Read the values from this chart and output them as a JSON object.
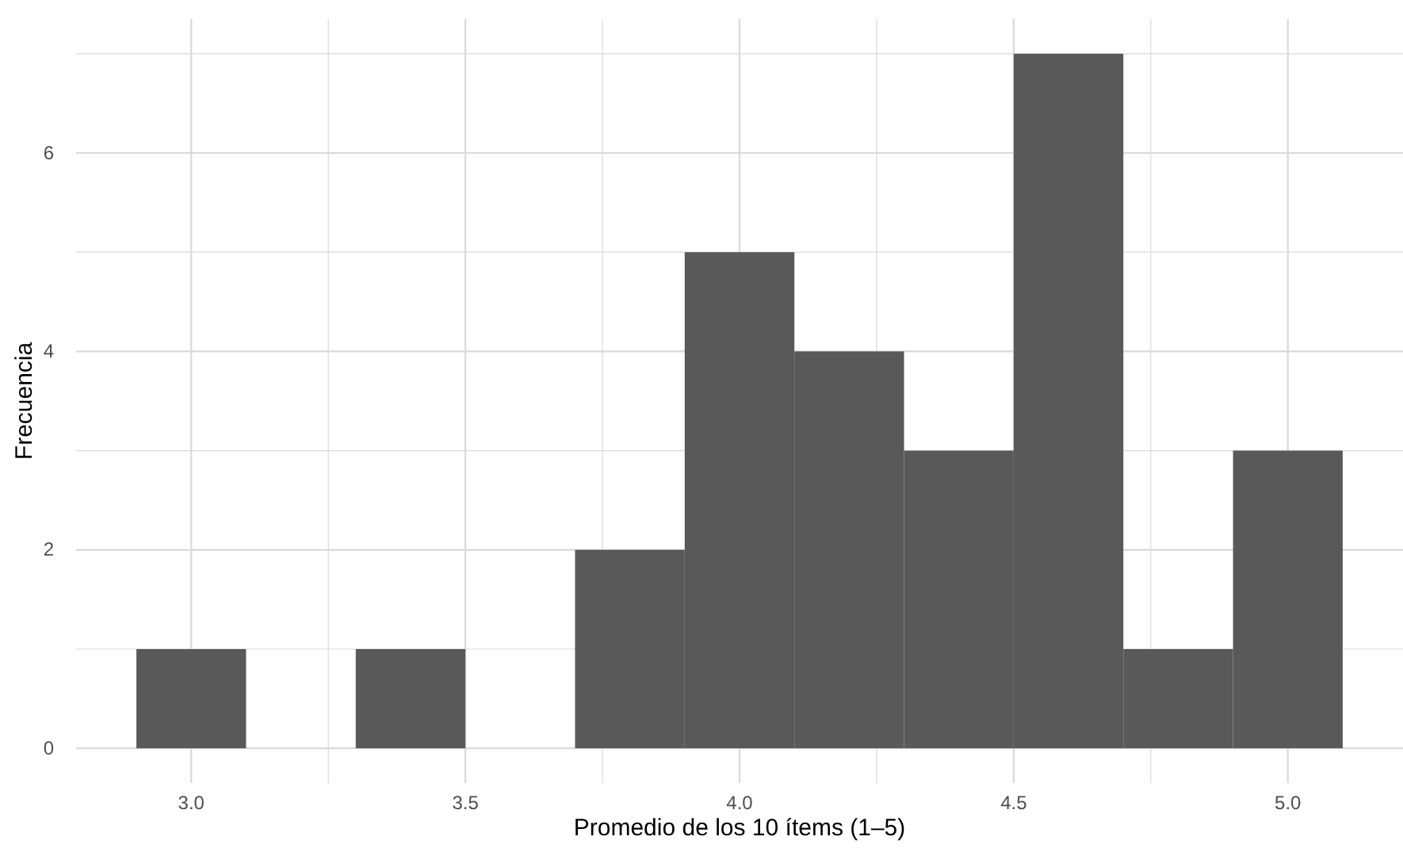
{
  "chart_data": {
    "type": "histogram",
    "xlabel": "Promedio de los 10 ítems (1–5)",
    "ylabel": "Frecuencia",
    "bins": [
      2.9,
      3.1,
      3.3,
      3.5,
      3.7,
      3.9,
      4.1,
      4.3,
      4.5,
      4.7,
      4.9,
      5.1
    ],
    "values": [
      1,
      0,
      1,
      0,
      2,
      5,
      4,
      3,
      7,
      1,
      3
    ],
    "color": "#595959",
    "xlim": [
      2.79,
      5.21
    ],
    "xticks": [
      {
        "value": 3.0,
        "label": "3.0"
      },
      {
        "value": 3.25,
        "label": null
      },
      {
        "value": 3.5,
        "label": "3.5"
      },
      {
        "value": 3.75,
        "label": null
      },
      {
        "value": 4.0,
        "label": "4.0"
      },
      {
        "value": 4.25,
        "label": null
      },
      {
        "value": 4.5,
        "label": "4.5"
      },
      {
        "value": 4.75,
        "label": null
      },
      {
        "value": 5.0,
        "label": "5.0"
      }
    ],
    "ylim": [
      -0.35,
      7.35
    ],
    "yticks": [
      0,
      {
        "value": 1,
        "label": null
      },
      2,
      {
        "value": 3,
        "label": null
      },
      4,
      {
        "value": 5,
        "label": null
      },
      6,
      {
        "value": 7,
        "label": null
      }
    ],
    "grid": true
  }
}
